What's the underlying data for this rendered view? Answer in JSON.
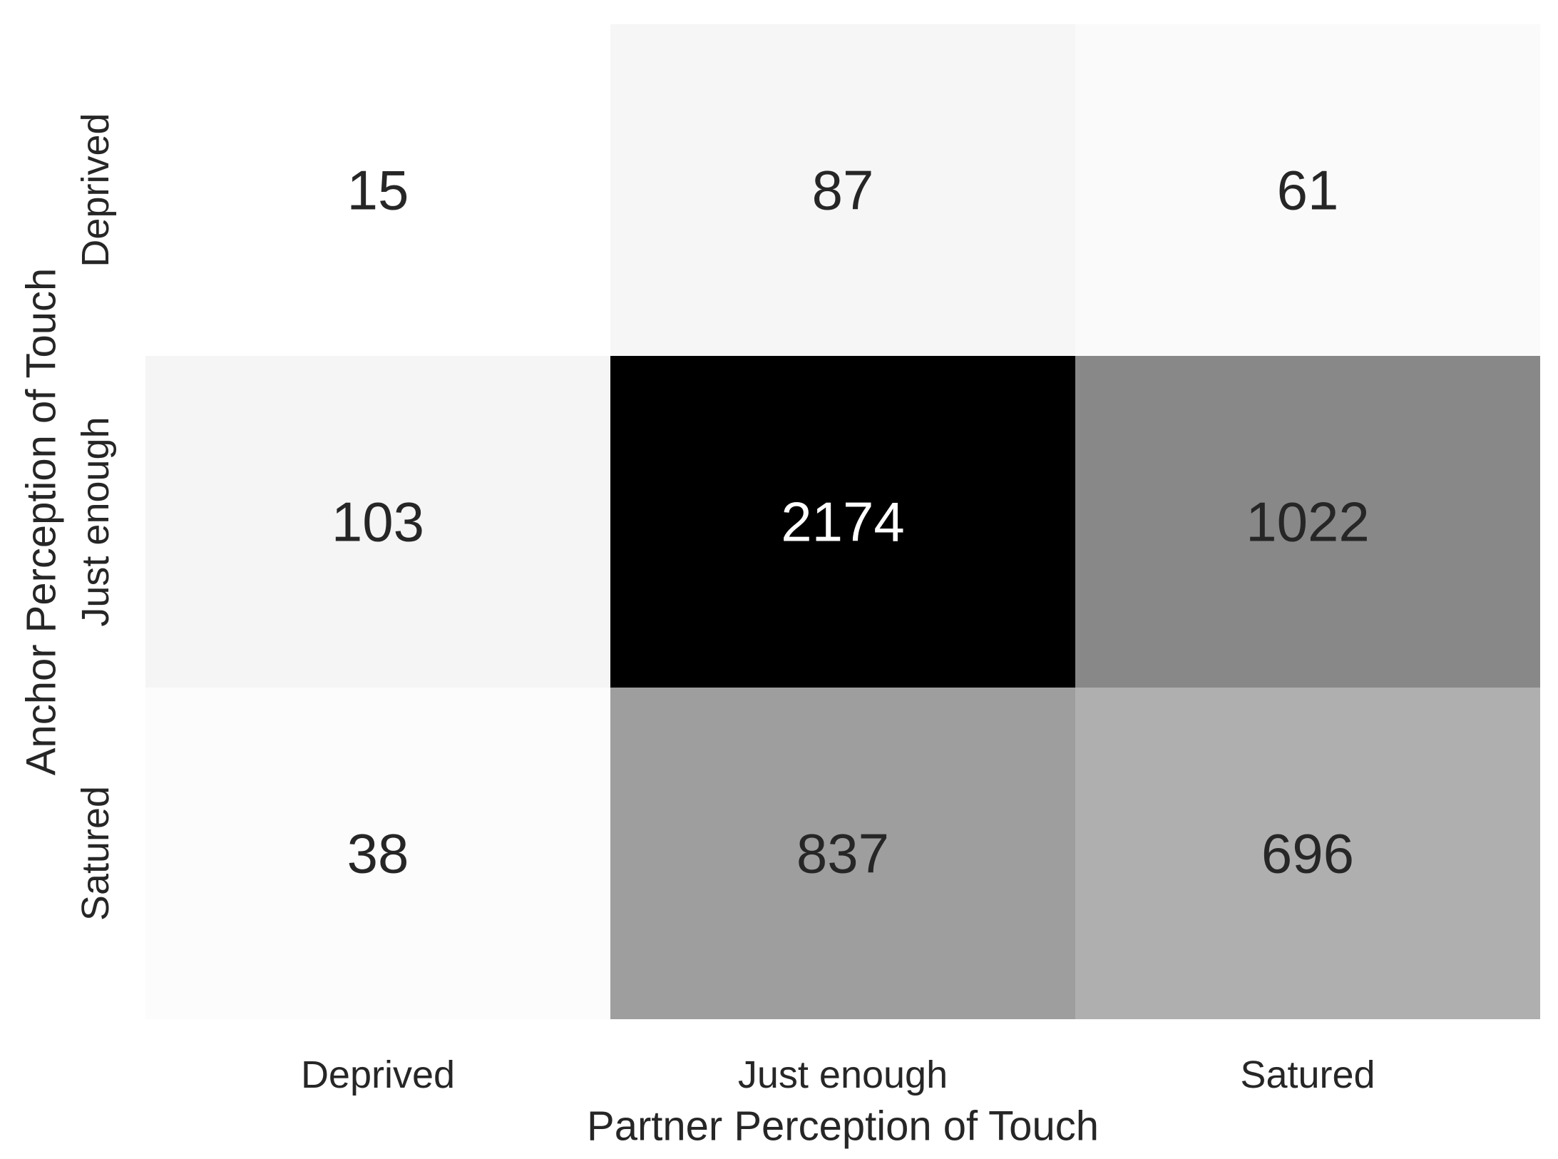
{
  "chart_data": {
    "type": "heatmap",
    "xlabel": "Partner Perception of Touch",
    "ylabel": "Anchor Perception of Touch",
    "x_categories": [
      "Deprived",
      "Just enough",
      "Satured"
    ],
    "y_categories": [
      "Deprived",
      "Just enough",
      "Satured"
    ],
    "values": [
      [
        15,
        87,
        61
      ],
      [
        103,
        2174,
        1022
      ],
      [
        38,
        837,
        696
      ]
    ],
    "colormap": {
      "low": "#ffffff",
      "high": "#000000"
    },
    "annotation_colors": {
      "dark_text": "#262626",
      "light_text": "#ffffff"
    },
    "grid": false,
    "colorbar": false
  }
}
